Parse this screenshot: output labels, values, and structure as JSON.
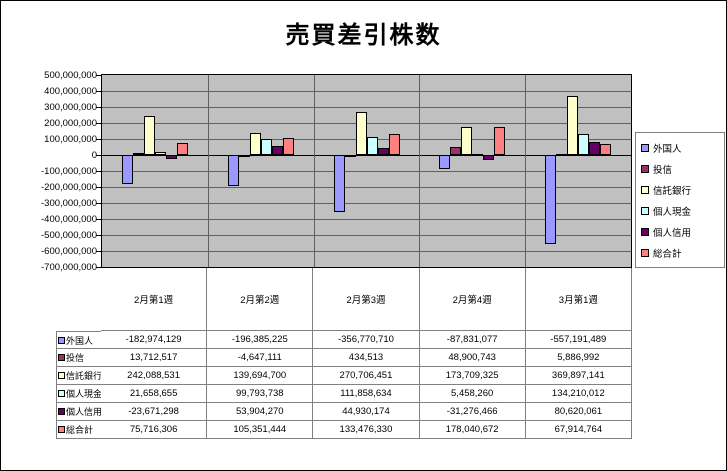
{
  "title": "売買差引株数",
  "chart_data": {
    "type": "bar",
    "title": "売買差引株数",
    "categories": [
      "2月第1週",
      "2月第2週",
      "2月第3週",
      "2月第4週",
      "3月第1週"
    ],
    "series": [
      {
        "name": "外国人",
        "color": "#9999FF",
        "values": [
          -182974129,
          -196385225,
          -356770710,
          -87831077,
          -557191489
        ]
      },
      {
        "name": "投信",
        "color": "#993366",
        "values": [
          13712517,
          -4647111,
          434513,
          48900743,
          5886992
        ]
      },
      {
        "name": "信託銀行",
        "color": "#FFFFCC",
        "values": [
          242088531,
          139694700,
          270706451,
          173709325,
          369897141
        ]
      },
      {
        "name": "個人現金",
        "color": "#CCFFFF",
        "values": [
          21658655,
          99793738,
          111858634,
          5458260,
          134210012
        ]
      },
      {
        "name": "個人信用",
        "color": "#660066",
        "values": [
          -23671298,
          53904270,
          44930174,
          -31276466,
          80620061
        ]
      },
      {
        "name": "総合計",
        "color": "#FF8080",
        "values": [
          75716306,
          105351444,
          133476330,
          178040672,
          67914764
        ]
      }
    ],
    "ylim": [
      -700000000,
      500000000
    ],
    "ytick_step": 100000000,
    "grid": true,
    "legend_position": "right",
    "plot_bg": "#C0C0C0",
    "has_data_table": true
  }
}
